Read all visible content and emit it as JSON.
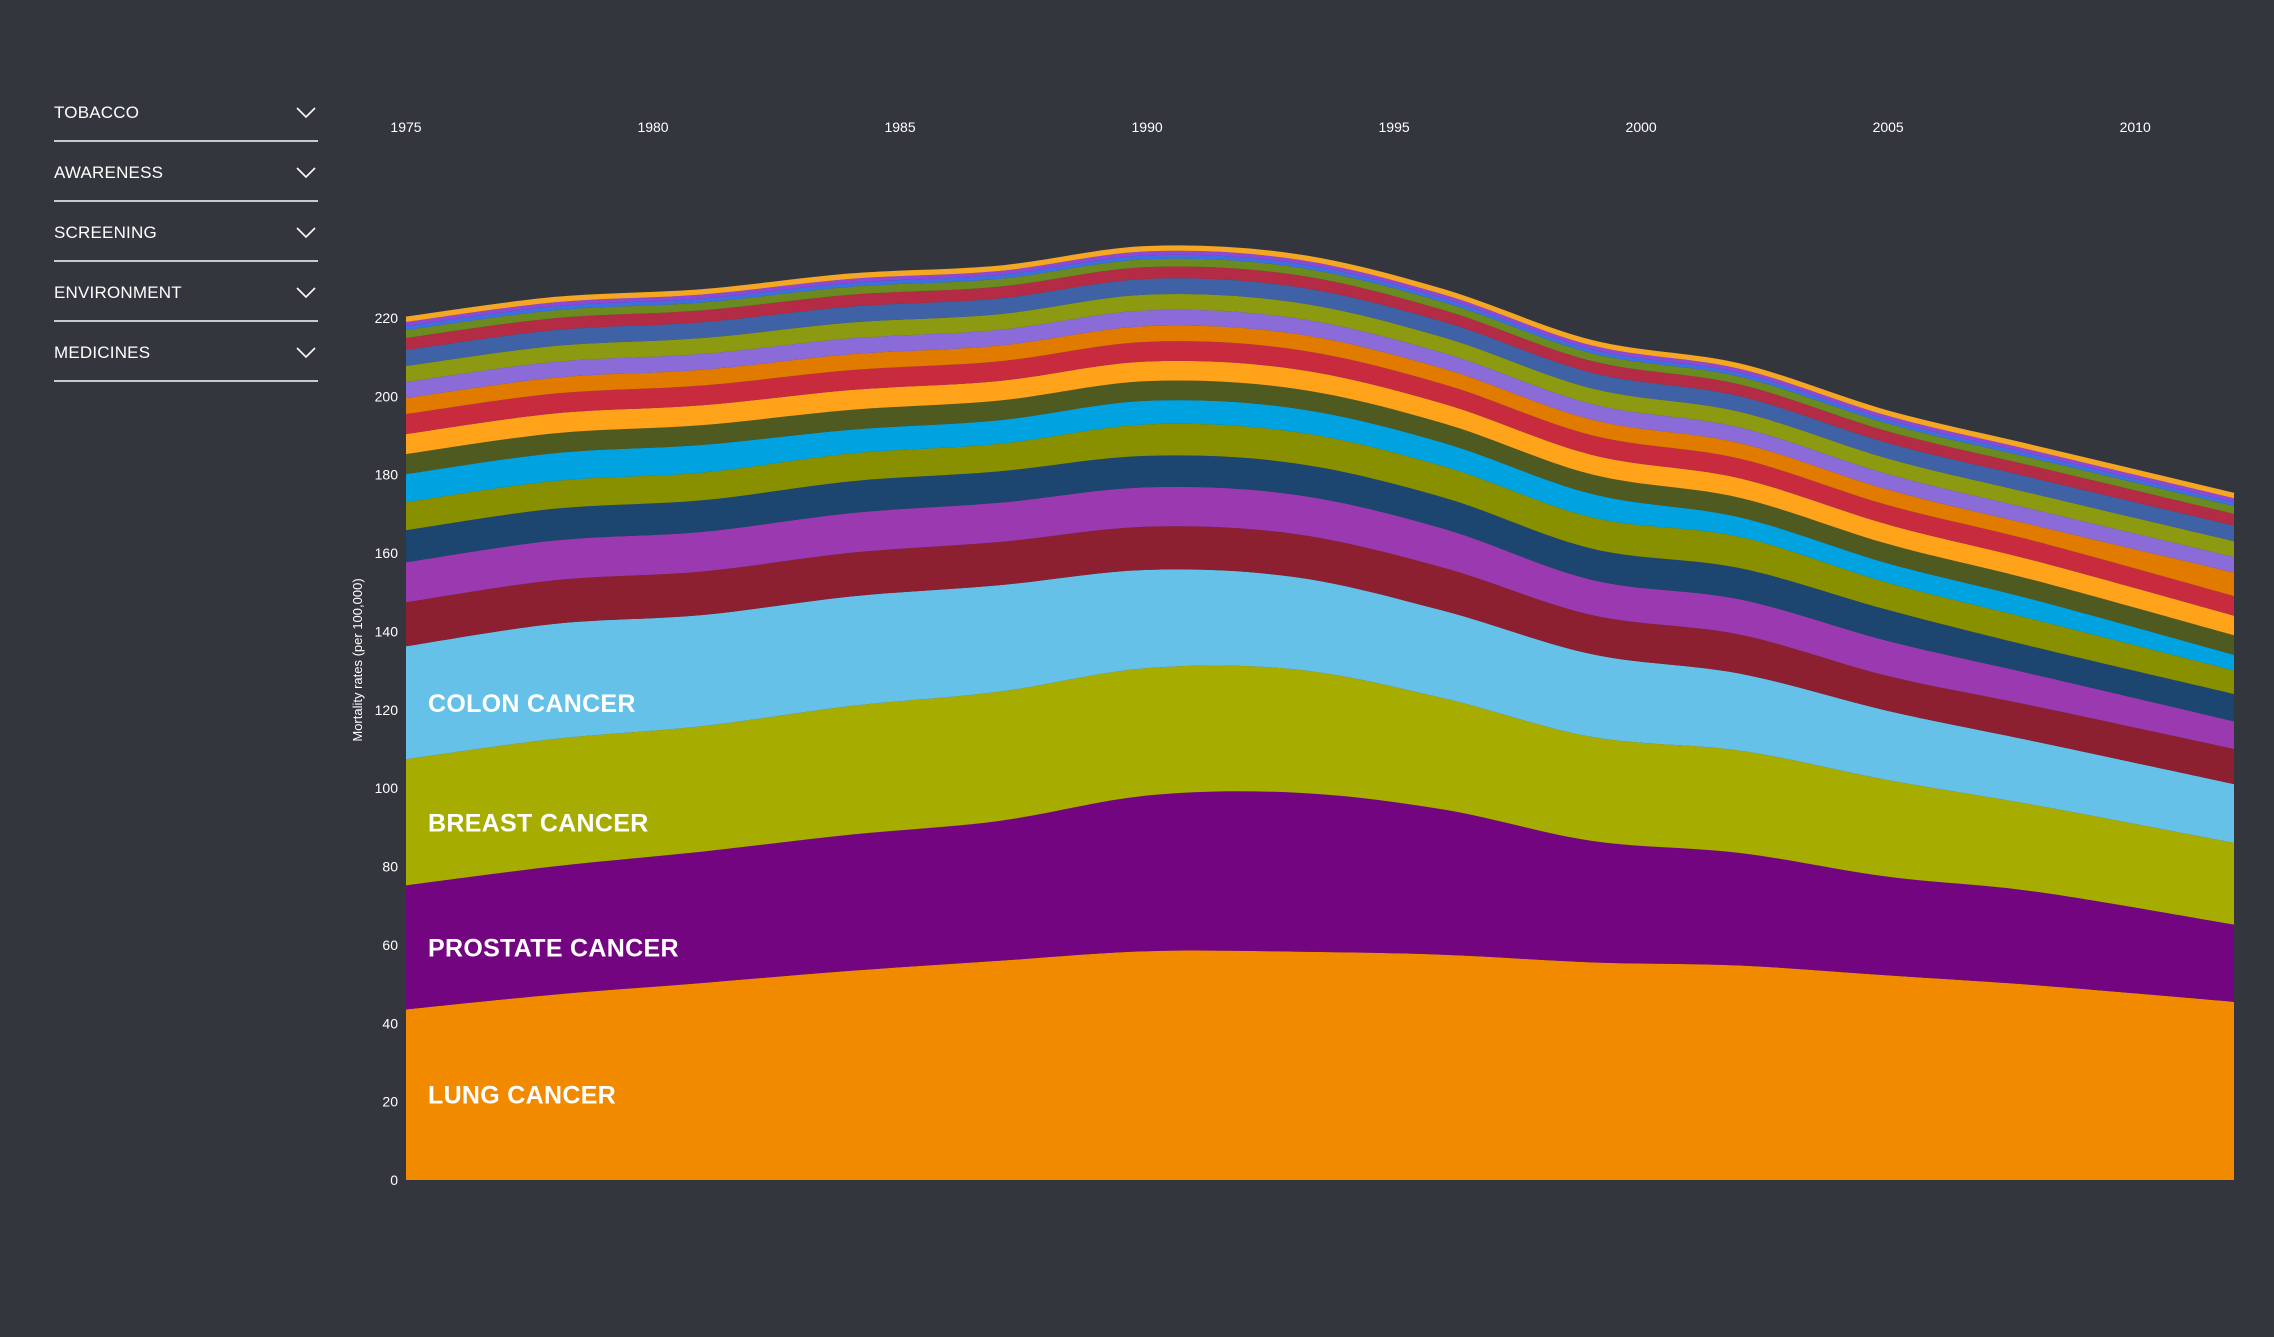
{
  "sidebar": {
    "items": [
      {
        "label": "TOBACCO",
        "icon": "chevron-down-icon"
      },
      {
        "label": "AWARENESS",
        "icon": "chevron-down-icon"
      },
      {
        "label": "SCREENING",
        "icon": "chevron-down-icon"
      },
      {
        "label": "ENVIRONMENT",
        "icon": "chevron-down-icon"
      },
      {
        "label": "MEDICINES",
        "icon": "chevron-down-icon"
      }
    ]
  },
  "chart_data": {
    "type": "area",
    "stacked": true,
    "title": "",
    "xlabel": "",
    "ylabel": "Mortality rates (per 100,000)",
    "xlim": [
      1975,
      2012
    ],
    "ylim": [
      0,
      240
    ],
    "x_ticks": [
      1975,
      1980,
      1985,
      1990,
      1995,
      2000,
      2005,
      2010
    ],
    "y_ticks": [
      0,
      20,
      40,
      60,
      80,
      100,
      120,
      140,
      160,
      180,
      200,
      220
    ],
    "grid": false,
    "legend": "none",
    "x": [
      1975,
      1978,
      1981,
      1984,
      1987,
      1990,
      1993,
      1996,
      1999,
      2002,
      2005,
      2008,
      2012
    ],
    "totals": [
      220,
      225,
      227,
      231,
      233,
      238,
      236,
      227,
      214,
      208,
      196,
      187,
      175
    ],
    "series": [
      {
        "name": "LUNG CANCER",
        "color": "#f28a00",
        "values": [
          42.6,
          46.7,
          49.8,
          52.7,
          55.8,
          58.2,
          58.2,
          57.7,
          55.7,
          54.9,
          52.7,
          49.6,
          45.5
        ]
      },
      {
        "name": "PROSTATE CANCER",
        "color": "#730680",
        "values": [
          31.0,
          32.3,
          33.2,
          34.3,
          35.6,
          39.6,
          40.5,
          37.2,
          31.1,
          28.8,
          25.4,
          23.8,
          19.7
        ]
      },
      {
        "name": "BREAST CANCER",
        "color": "#a6ad00",
        "values": [
          31.5,
          32.1,
          31.7,
          32.4,
          32.9,
          32.4,
          31.4,
          28.5,
          26.6,
          26.2,
          24.9,
          22.0,
          20.9
        ]
      },
      {
        "name": "COLON CANCER",
        "color": "#66c1e8",
        "values": [
          28.2,
          29.0,
          28.1,
          27.6,
          27.1,
          25.0,
          23.5,
          22.4,
          21.2,
          19.7,
          17.8,
          16.2,
          15.0
        ]
      },
      {
        "name": "",
        "color": "#8c1f30",
        "values": [
          11,
          11,
          11,
          11,
          11,
          11,
          11,
          11,
          10,
          10,
          9,
          9,
          9
        ]
      },
      {
        "name": "",
        "color": "#9b3ab0",
        "values": [
          10,
          10,
          10,
          10,
          10,
          10,
          10,
          10,
          9,
          9,
          9,
          8,
          7
        ]
      },
      {
        "name": "",
        "color": "#1c4670",
        "values": [
          8,
          8,
          8,
          8,
          8,
          8,
          8,
          8,
          8,
          8,
          8,
          7,
          7
        ]
      },
      {
        "name": "",
        "color": "#899000",
        "values": [
          7,
          7,
          7,
          7,
          7,
          8,
          8,
          8,
          8,
          8,
          7,
          7,
          6
        ]
      },
      {
        "name": "",
        "color": "#00a3e0",
        "values": [
          7,
          7,
          7,
          6,
          6,
          6,
          6,
          6,
          6,
          5,
          5,
          5,
          4
        ]
      },
      {
        "name": "",
        "color": "#4f5a20",
        "values": [
          5,
          5,
          5,
          5,
          5,
          5,
          5,
          5,
          5,
          5,
          5,
          5,
          5
        ]
      },
      {
        "name": "",
        "color": "#ffa31a",
        "values": [
          5,
          5,
          5,
          5,
          5,
          5,
          5,
          5,
          5,
          5,
          5,
          5,
          5
        ]
      },
      {
        "name": "",
        "color": "#c92b3e",
        "values": [
          5,
          5,
          5,
          5,
          5,
          5,
          5,
          5,
          5,
          5,
          5,
          5,
          5
        ]
      },
      {
        "name": "",
        "color": "#e07b00",
        "values": [
          4,
          4,
          4,
          4,
          4,
          4,
          4,
          4,
          4,
          4,
          4,
          4,
          6
        ]
      },
      {
        "name": "",
        "color": "#8a6bd8",
        "values": [
          4,
          4,
          4,
          4,
          4,
          4,
          4,
          4,
          4,
          4,
          4,
          4,
          4
        ]
      },
      {
        "name": "",
        "color": "#8c9a12",
        "values": [
          4,
          4,
          4,
          4,
          4,
          4,
          4,
          4,
          4,
          4,
          4,
          4,
          4
        ]
      },
      {
        "name": "",
        "color": "#3f62a6",
        "values": [
          4,
          4,
          4,
          4,
          4,
          4,
          4,
          4,
          4,
          4,
          4,
          4,
          4
        ]
      },
      {
        "name": "",
        "color": "#b32b45",
        "values": [
          3,
          3,
          3,
          3,
          3,
          3,
          3,
          3,
          3,
          3,
          3,
          3,
          3
        ]
      },
      {
        "name": "",
        "color": "#6b8a1f",
        "values": [
          2,
          2,
          2,
          2,
          2,
          2,
          2,
          2,
          2,
          2,
          2,
          2,
          2
        ]
      },
      {
        "name": "",
        "color": "#3f6ee0",
        "values": [
          1,
          1,
          1,
          1,
          1,
          1,
          1,
          1,
          1,
          1,
          1,
          1,
          1
        ]
      },
      {
        "name": "",
        "color": "#8d48d6",
        "values": [
          1,
          1,
          1,
          1,
          1,
          1,
          1,
          1,
          1,
          1,
          1,
          1,
          1
        ]
      },
      {
        "name": "",
        "color": "#f5a623",
        "values": [
          1,
          1,
          1,
          1,
          1,
          1,
          1,
          1,
          1,
          1,
          1,
          1,
          1
        ]
      }
    ]
  }
}
